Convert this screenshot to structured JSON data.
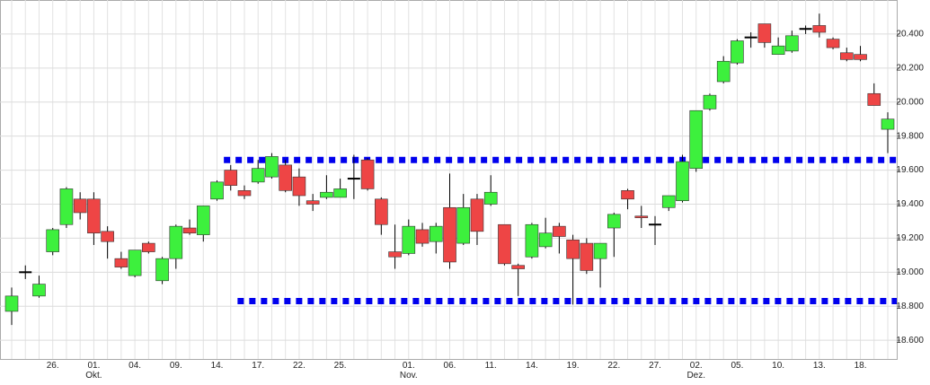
{
  "chart_data": {
    "type": "candlestick",
    "categories": [
      null,
      null,
      null,
      "26.",
      null,
      null,
      "01.\nOkt.",
      null,
      null,
      "04.",
      null,
      null,
      "09.",
      null,
      null,
      "14.",
      null,
      null,
      "17.",
      null,
      null,
      "22.",
      null,
      null,
      "25.",
      null,
      null,
      null,
      null,
      "01.\nNov.",
      null,
      null,
      "06.",
      null,
      null,
      "11.",
      null,
      null,
      "14.",
      null,
      null,
      "19.",
      null,
      null,
      "22.",
      null,
      null,
      "27.",
      null,
      null,
      "02.\nDez.",
      null,
      null,
      "05.",
      null,
      null,
      "10.",
      null,
      null,
      "13.",
      null,
      null,
      "18.",
      null,
      null
    ],
    "open": [
      18.77,
      19.0,
      18.86,
      19.12,
      19.28,
      19.43,
      19.43,
      19.24,
      19.08,
      18.98,
      19.17,
      18.95,
      19.08,
      19.26,
      19.22,
      19.43,
      19.6,
      19.48,
      19.53,
      19.56,
      19.63,
      19.56,
      19.42,
      19.44,
      19.44,
      19.55,
      19.66,
      19.43,
      19.12,
      19.11,
      19.25,
      19.18,
      19.38,
      19.17,
      19.43,
      19.4,
      19.28,
      19.04,
      19.09,
      19.15,
      19.27,
      19.19,
      19.17,
      19.08,
      19.26,
      19.48,
      19.33,
      19.28,
      19.38,
      19.42,
      19.61,
      19.96,
      20.12,
      20.23,
      20.38,
      20.46,
      20.28,
      20.3,
      20.43,
      20.45,
      20.37,
      20.29,
      20.28,
      20.05,
      19.84
    ],
    "high": [
      18.91,
      19.04,
      18.98,
      19.26,
      19.5,
      19.47,
      19.47,
      19.27,
      19.12,
      19.13,
      19.18,
      19.09,
      19.28,
      19.31,
      19.39,
      19.54,
      19.63,
      19.51,
      19.66,
      19.7,
      19.66,
      19.61,
      19.46,
      19.57,
      19.55,
      19.69,
      19.67,
      19.44,
      19.28,
      19.31,
      19.29,
      19.29,
      19.58,
      19.46,
      19.46,
      19.57,
      19.28,
      19.05,
      19.29,
      19.32,
      19.29,
      19.22,
      19.2,
      19.17,
      19.35,
      19.49,
      19.39,
      19.33,
      19.45,
      19.69,
      19.95,
      20.05,
      20.27,
      20.37,
      20.41,
      20.46,
      20.38,
      20.42,
      20.45,
      20.52,
      20.38,
      20.32,
      20.33,
      20.11,
      19.94
    ],
    "low": [
      18.69,
      18.96,
      18.85,
      19.1,
      19.26,
      19.31,
      19.16,
      19.08,
      19.02,
      18.97,
      19.11,
      18.93,
      19.02,
      19.22,
      19.18,
      19.42,
      19.48,
      19.43,
      19.52,
      19.55,
      19.47,
      19.39,
      19.36,
      19.43,
      19.44,
      19.43,
      19.48,
      19.22,
      19.02,
      19.1,
      19.15,
      19.11,
      19.02,
      19.16,
      19.16,
      19.39,
      19.04,
      18.86,
      19.08,
      19.14,
      19.11,
      18.81,
      18.99,
      18.91,
      19.09,
      19.37,
      19.26,
      19.16,
      19.36,
      19.41,
      19.59,
      19.95,
      20.11,
      20.22,
      20.32,
      20.32,
      20.28,
      20.29,
      20.4,
      20.38,
      20.31,
      20.24,
      20.24,
      19.98,
      19.7
    ],
    "close": [
      18.86,
      19.0,
      18.93,
      19.25,
      19.49,
      19.35,
      19.23,
      19.18,
      19.03,
      19.13,
      19.12,
      19.08,
      19.27,
      19.23,
      19.39,
      19.53,
      19.51,
      19.45,
      19.61,
      19.68,
      19.48,
      19.45,
      19.4,
      19.47,
      19.49,
      19.55,
      19.49,
      19.28,
      19.09,
      19.27,
      19.17,
      19.27,
      19.06,
      19.38,
      19.24,
      19.47,
      19.05,
      19.02,
      19.28,
      19.23,
      19.21,
      19.08,
      19.01,
      19.17,
      19.34,
      19.43,
      19.32,
      19.28,
      19.45,
      19.65,
      19.95,
      20.04,
      20.24,
      20.36,
      20.38,
      20.35,
      20.33,
      20.39,
      20.43,
      20.41,
      20.32,
      20.25,
      20.25,
      19.98,
      19.9
    ],
    "up_color": "#3df03d",
    "down_color": "#ee4545",
    "doji_color": "#000000",
    "reference_lines": [
      {
        "value": 19.66,
        "start": 16,
        "color": "#0000ee"
      },
      {
        "value": 18.83,
        "start": 17,
        "color": "#0000ee"
      }
    ],
    "ylim": [
      18.49,
      20.6
    ],
    "yticks": [
      {
        "value": 18.6,
        "label": "18.600"
      },
      {
        "value": 18.8,
        "label": "18.800"
      },
      {
        "value": 19.0,
        "label": "19.000"
      },
      {
        "value": 19.2,
        "label": "19.200"
      },
      {
        "value": 19.4,
        "label": "19.400"
      },
      {
        "value": 19.6,
        "label": "19.600"
      },
      {
        "value": 19.8,
        "label": "19.800"
      },
      {
        "value": 20.0,
        "label": "20.000"
      },
      {
        "value": 20.2,
        "label": "20.200"
      },
      {
        "value": 20.4,
        "label": "20.400"
      }
    ],
    "grid": true
  }
}
